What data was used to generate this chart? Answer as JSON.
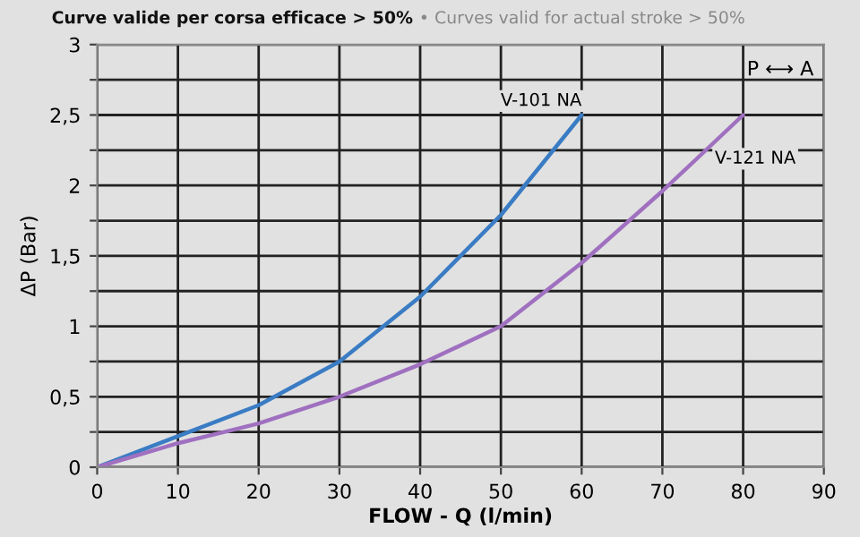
{
  "chart_data": {
    "type": "line",
    "title": "Curve valide per corsa efficace > 50%",
    "subtitle": "• Curves valid for actual stroke > 50%",
    "xlabel": "FLOW - Q (l/min)",
    "ylabel": "ΔP (Bar)",
    "series": [
      {
        "name": "V-101 NA",
        "color": "#3a7cc4",
        "x": [
          0,
          10,
          20,
          30,
          40,
          50,
          60
        ],
        "values": [
          0,
          0.22,
          0.44,
          0.75,
          1.21,
          1.79,
          2.5
        ]
      },
      {
        "name": "V-121 NA",
        "color": "#a070c0",
        "x": [
          0,
          10,
          20,
          30,
          40,
          50,
          60,
          70,
          80
        ],
        "values": [
          0,
          0.17,
          0.31,
          0.5,
          0.73,
          1.0,
          1.45,
          1.96,
          2.5
        ]
      }
    ],
    "annotations": [
      "P ⟷ A"
    ],
    "xlim": [
      0,
      90
    ],
    "xticks": [
      0,
      10,
      20,
      30,
      40,
      50,
      60,
      70,
      80,
      90
    ],
    "ylim": [
      0,
      3
    ],
    "yticks": [
      0,
      {
        "value": 0.25,
        "label": null
      },
      {
        "value": 0.5,
        "label": "0,5"
      },
      {
        "value": 0.75,
        "label": null
      },
      1,
      {
        "value": 1.25,
        "label": null
      },
      {
        "value": 1.5,
        "label": "1,5"
      },
      {
        "value": 1.75,
        "label": null
      },
      2,
      {
        "value": 2.25,
        "label": null
      },
      {
        "value": 2.5,
        "label": "2,5"
      },
      {
        "value": 2.75,
        "label": null
      },
      3
    ],
    "grid": true,
    "legend": false,
    "marker": "none",
    "line_style": "solid"
  }
}
